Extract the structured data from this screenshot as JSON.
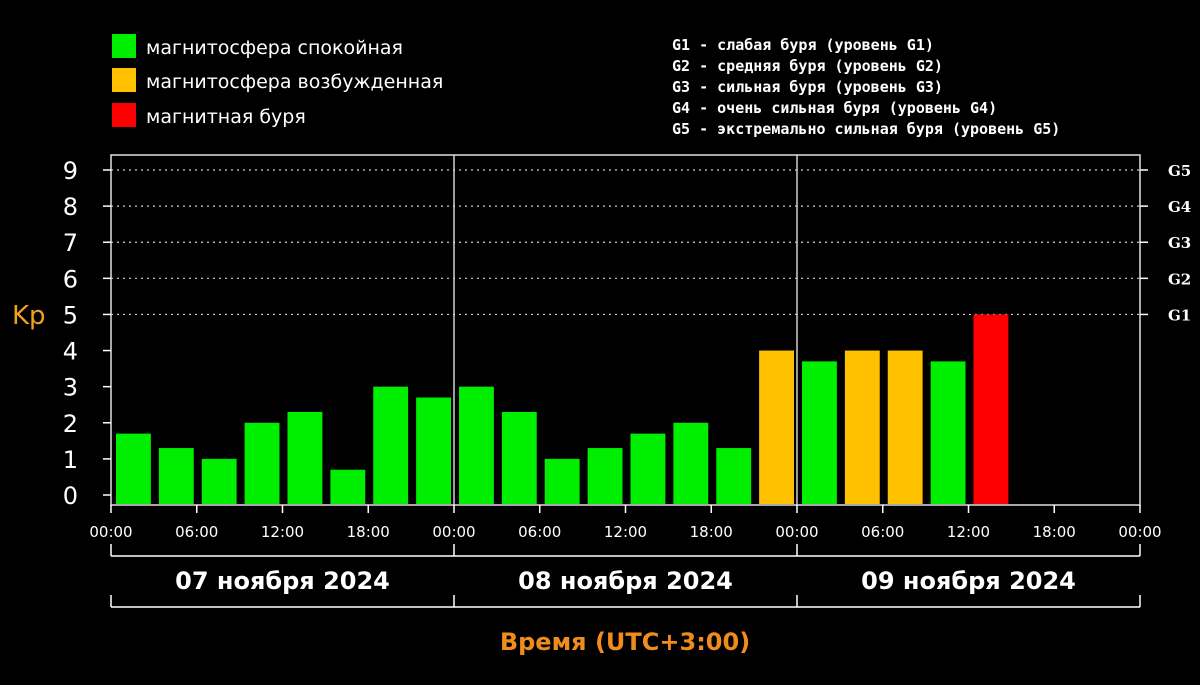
{
  "legend": [
    {
      "label": "магнитосфера спокойная",
      "color": "#00ee00"
    },
    {
      "label": "магнитосфера возбужденная",
      "color": "#ffc000"
    },
    {
      "label": "магнитная буря",
      "color": "#ff0000"
    }
  ],
  "storm_levels": [
    "G1 - слабая буря (уровень G1)",
    "G2 - средняя буря (уровень G2)",
    "G3 - сильная буря (уровень G3)",
    "G4 - очень сильная буря (уровень G4)",
    "G5 - экстремально сильная буря (уровень G5)"
  ],
  "chart_data": {
    "type": "bar",
    "ylabel": "Kp",
    "xlabel": "Время (UTC+3:00)",
    "ylim": [
      0,
      9
    ],
    "yticks": [
      "0",
      "1",
      "2",
      "3",
      "4",
      "5",
      "6",
      "7",
      "8",
      "9"
    ],
    "right_ticks": [
      {
        "label": "G1",
        "y": 5
      },
      {
        "label": "G2",
        "y": 6
      },
      {
        "label": "G3",
        "y": 7
      },
      {
        "label": "G4",
        "y": 8
      },
      {
        "label": "G5",
        "y": 9
      }
    ],
    "xticks": [
      "00:00",
      "06:00",
      "12:00",
      "18:00",
      "00:00",
      "06:00",
      "12:00",
      "18:00",
      "00:00",
      "06:00",
      "12:00",
      "18:00",
      "00:00"
    ],
    "days": [
      "07 ноября 2024",
      "08 ноября 2024",
      "09 ноября 2024"
    ],
    "interval_hours": 3,
    "values": [
      1.7,
      1.3,
      1.0,
      2.0,
      2.3,
      0.7,
      3.0,
      2.7,
      3.0,
      2.3,
      1.0,
      1.3,
      1.7,
      2.0,
      1.3,
      4.0,
      3.7,
      4.0,
      4.0,
      3.7,
      5.0
    ],
    "levels": [
      "quiet",
      "quiet",
      "quiet",
      "quiet",
      "quiet",
      "quiet",
      "quiet",
      "quiet",
      "quiet",
      "quiet",
      "quiet",
      "quiet",
      "quiet",
      "quiet",
      "quiet",
      "active",
      "quiet",
      "active",
      "active",
      "quiet",
      "storm"
    ],
    "level_colors": {
      "quiet": "#00ee00",
      "active": "#ffc000",
      "storm": "#ff0000"
    },
    "grid": "dotted horizontal at G-levels",
    "legend_position": "top-left"
  }
}
